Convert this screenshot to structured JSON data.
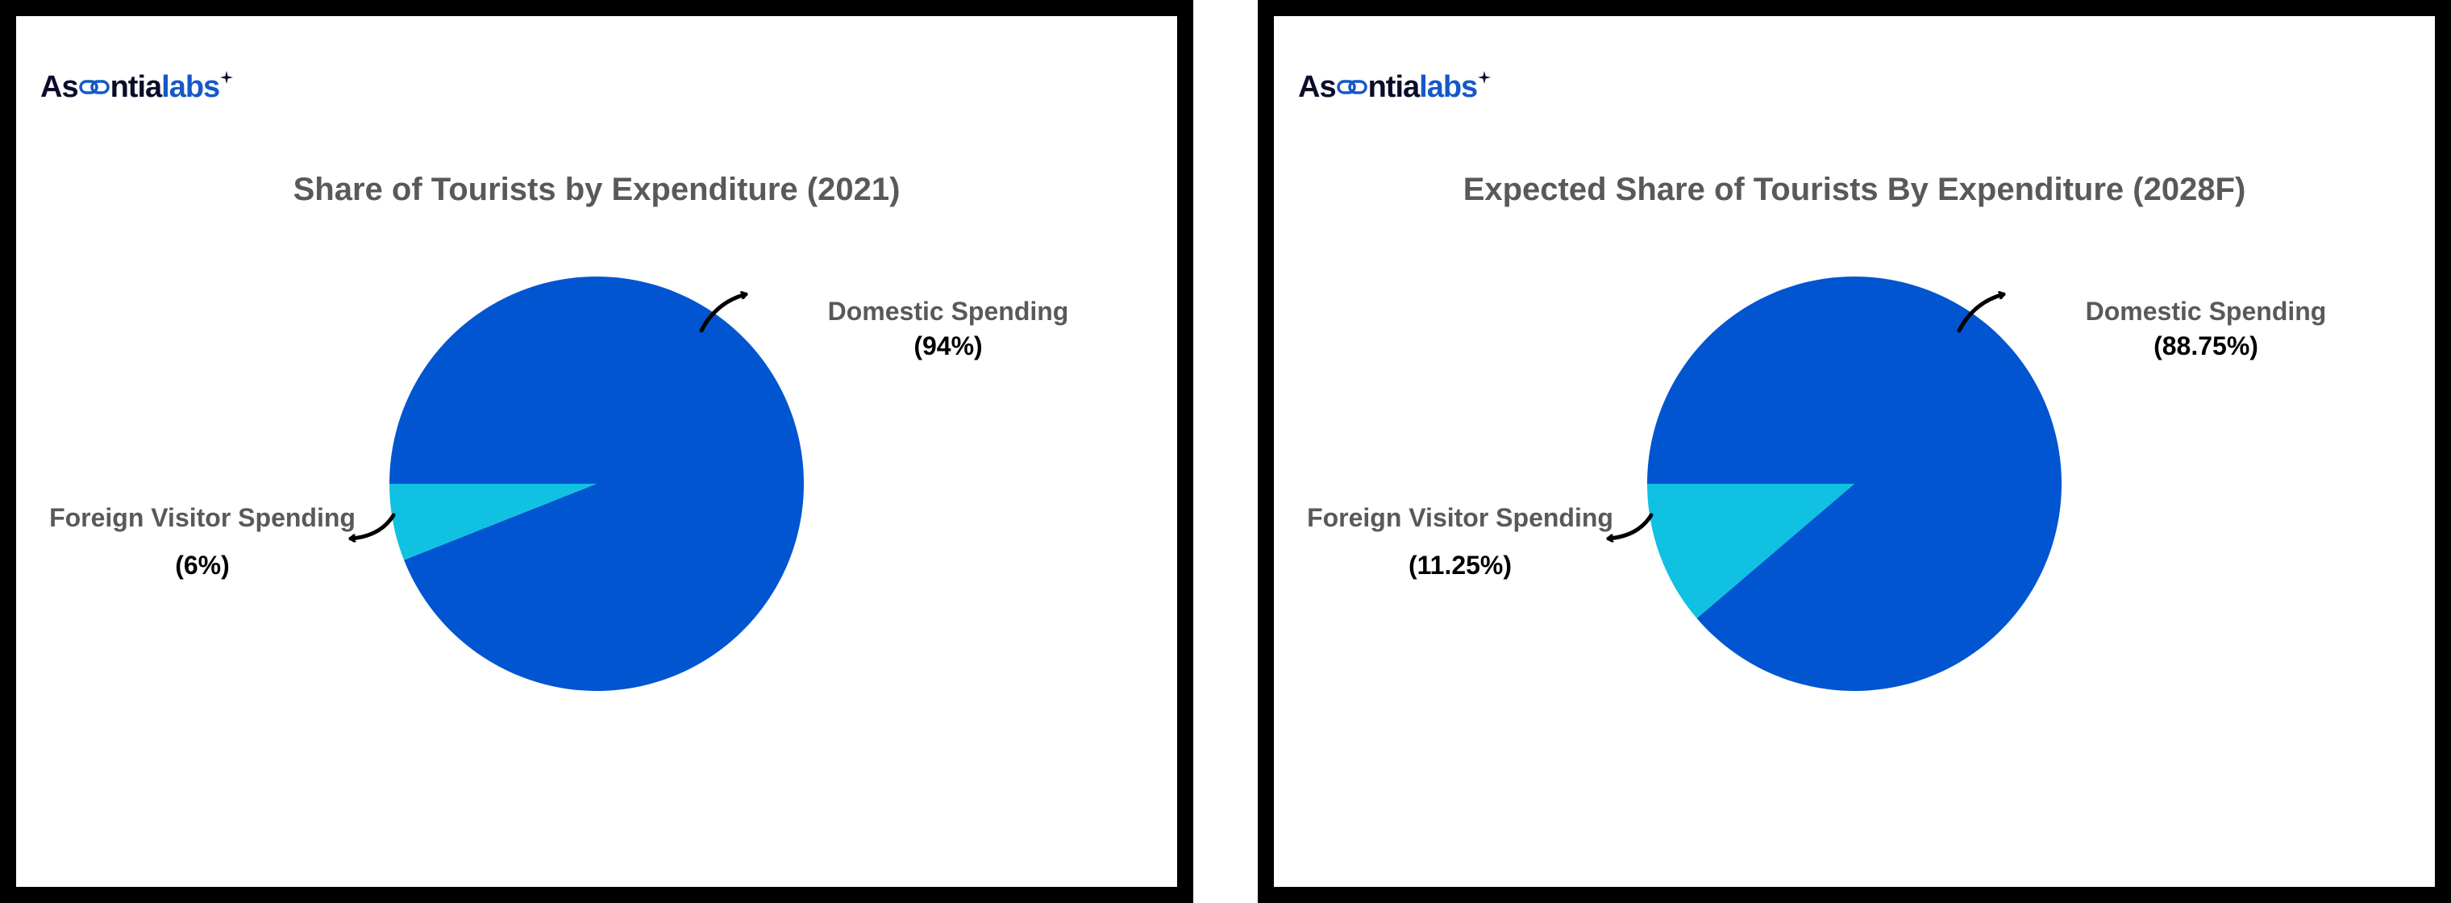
{
  "brand": {
    "text_prefix": "As",
    "text_mid": "ntia",
    "text_suffix": "labs",
    "colors": {
      "dark": "#0c0c2a",
      "blue": "#1458c9"
    }
  },
  "colors": {
    "domestic": "#0255d0",
    "foreign": "#10c1e1",
    "title": "#595959"
  },
  "chart_data": [
    {
      "type": "pie",
      "title": "Share of Tourists by Expenditure (2021)",
      "slices": [
        {
          "label": "Domestic Spending",
          "value": 94,
          "value_label": "(94%)",
          "color": "#0255d0"
        },
        {
          "label": "Foreign Visitor Spending",
          "value": 6,
          "value_label": "(6%)",
          "color": "#10c1e1"
        }
      ]
    },
    {
      "type": "pie",
      "title": "Expected Share of Tourists By Expenditure (2028F)",
      "slices": [
        {
          "label": "Domestic Spending",
          "value": 88.75,
          "value_label": "(88.75%)",
          "color": "#0255d0"
        },
        {
          "label": "Foreign Visitor Spending",
          "value": 11.25,
          "value_label": "(11.25%)",
          "color": "#10c1e1"
        }
      ]
    }
  ]
}
